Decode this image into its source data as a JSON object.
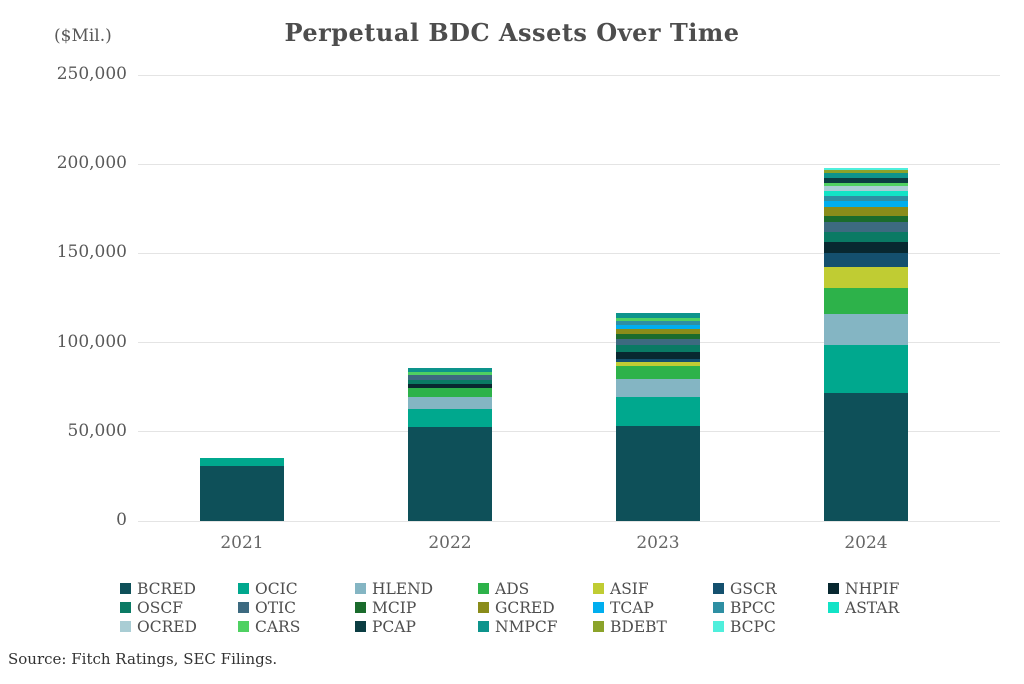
{
  "chart": {
    "title": "Perpetual BDC Assets Over Time",
    "unit_label": "($Mil.)",
    "source": "Source: Fitch Ratings, SEC Filings."
  },
  "chart_data": {
    "type": "bar",
    "stacked": true,
    "title": "Perpetual BDC Assets Over Time",
    "xlabel": "",
    "ylabel": "($Mil.)",
    "categories": [
      "2021",
      "2022",
      "2023",
      "2024"
    ],
    "ylim": [
      0,
      250000
    ],
    "yticks": [
      {
        "label": "250,000",
        "value": 250000
      },
      {
        "label": "200,000",
        "value": 200000
      },
      {
        "label": "150,000",
        "value": 150000
      },
      {
        "label": "100,000",
        "value": 100000
      },
      {
        "label": "50,000",
        "value": 50000
      },
      {
        "label": "0",
        "value": 0
      }
    ],
    "grid": "horizontal",
    "legend_position": "bottom",
    "series": [
      {
        "name": "BCRED",
        "color": "#0e5059",
        "values": [
          31000,
          52500,
          53300,
          71800
        ]
      },
      {
        "name": "OCIC",
        "color": "#00a88e",
        "values": [
          4500,
          10500,
          16500,
          26900
        ]
      },
      {
        "name": "HLEND",
        "color": "#84b5c3",
        "values": [
          0,
          6300,
          9700,
          17200
        ]
      },
      {
        "name": "ADS",
        "color": "#2db24a",
        "values": [
          0,
          5200,
          7200,
          15000
        ]
      },
      {
        "name": "ASIF",
        "color": "#c0cc33",
        "values": [
          0,
          0,
          2300,
          11600
        ]
      },
      {
        "name": "GSCR",
        "color": "#14506e",
        "values": [
          0,
          0,
          1800,
          7500
        ]
      },
      {
        "name": "NHPIF",
        "color": "#082830",
        "values": [
          0,
          2300,
          3900,
          6300
        ]
      },
      {
        "name": "OSCF",
        "color": "#0a7a64",
        "values": [
          0,
          2500,
          3900,
          6000
        ]
      },
      {
        "name": "OTIC",
        "color": "#3d6a80",
        "values": [
          0,
          2300,
          3600,
          5200
        ]
      },
      {
        "name": "MCIP",
        "color": "#1a6b2c",
        "values": [
          0,
          0,
          2600,
          3700
        ]
      },
      {
        "name": "GCRED",
        "color": "#8a8c1a",
        "values": [
          0,
          0,
          2600,
          4900
        ]
      },
      {
        "name": "TCAP",
        "color": "#00aeef",
        "values": [
          0,
          0,
          2600,
          3400
        ]
      },
      {
        "name": "BPCC",
        "color": "#2e8fa3",
        "values": [
          0,
          0,
          2200,
          3000
        ]
      },
      {
        "name": "ASTAR",
        "color": "#12e3c6",
        "values": [
          0,
          0,
          0,
          2600
        ]
      },
      {
        "name": "OCRED",
        "color": "#a9cdd4",
        "values": [
          0,
          0,
          0,
          2600
        ]
      },
      {
        "name": "CARS",
        "color": "#4fd162",
        "values": [
          0,
          2200,
          1900,
          1900
        ]
      },
      {
        "name": "PCAP",
        "color": "#0b3d42",
        "values": [
          0,
          0,
          0,
          2600
        ]
      },
      {
        "name": "NMPCF",
        "color": "#0d948c",
        "values": [
          0,
          2200,
          2600,
          3000
        ]
      },
      {
        "name": "BDEBT",
        "color": "#8ba32a",
        "values": [
          0,
          0,
          0,
          1500
        ]
      },
      {
        "name": "BCPC",
        "color": "#4fefdc",
        "values": [
          0,
          0,
          0,
          1500
        ]
      }
    ]
  }
}
